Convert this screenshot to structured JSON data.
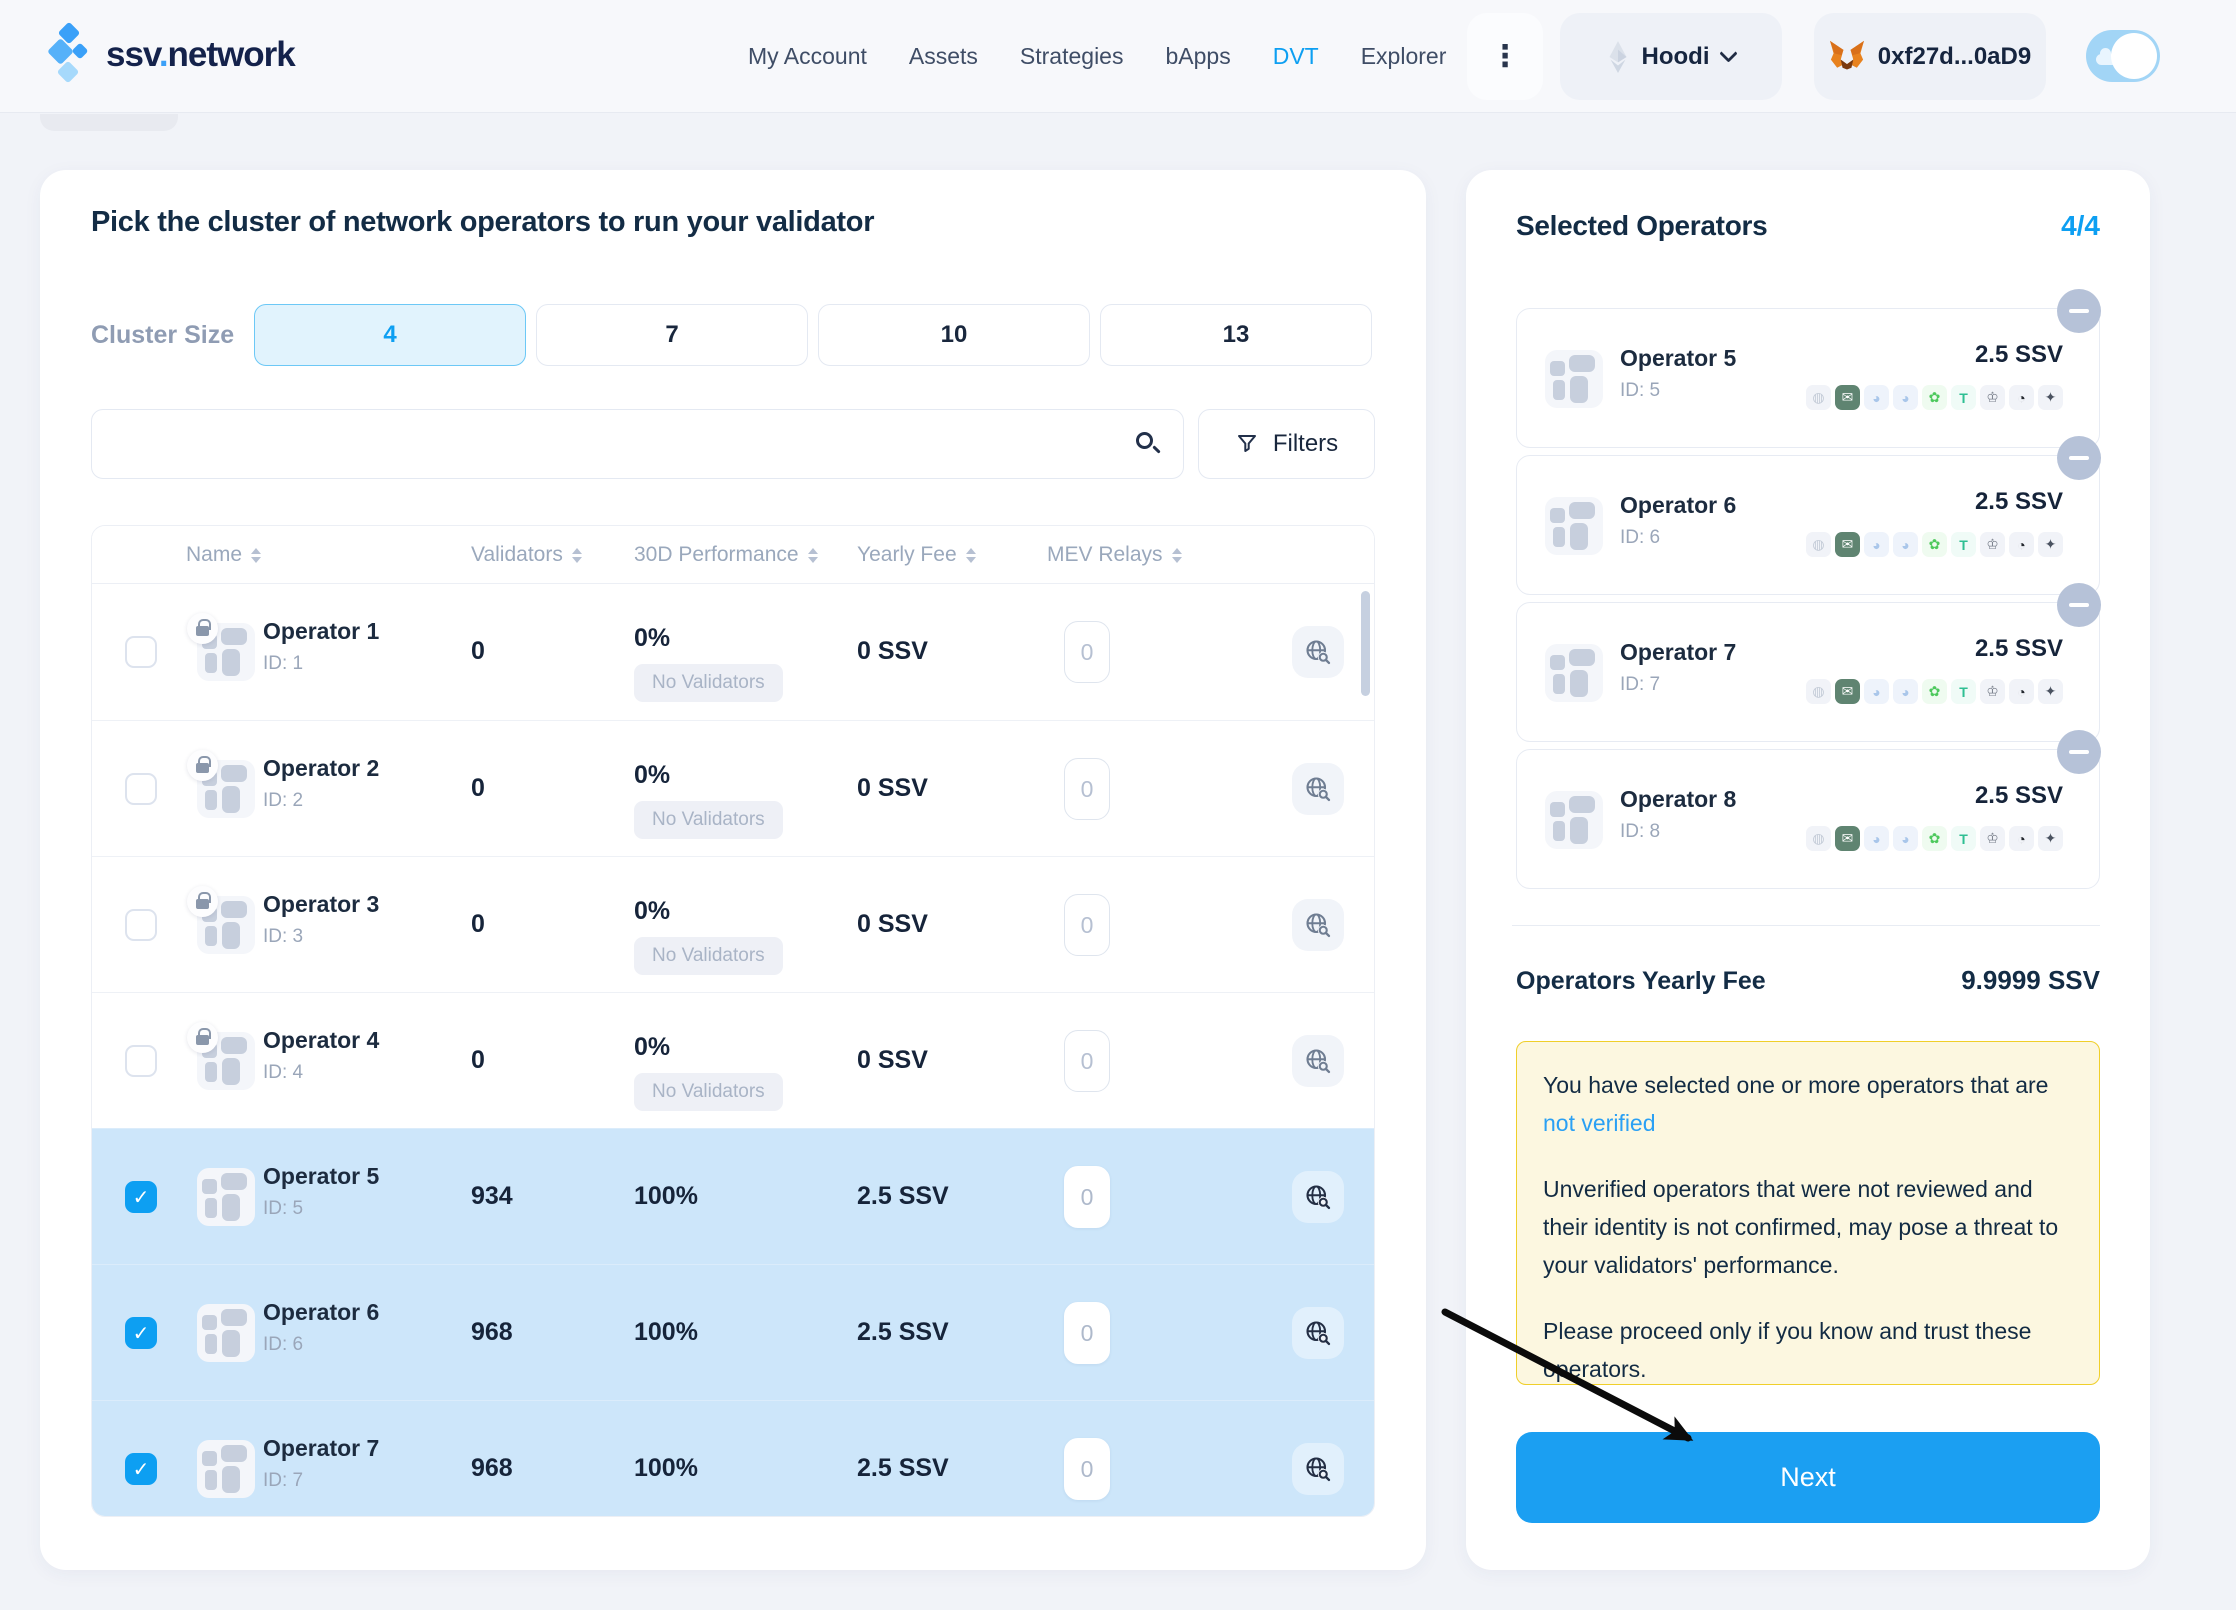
{
  "brand": {
    "prefix": "ssv",
    "dot": ".",
    "suffix": "network"
  },
  "nav": {
    "items": [
      {
        "label": "My Account",
        "active": false
      },
      {
        "label": "Assets",
        "active": false
      },
      {
        "label": "Strategies",
        "active": false
      },
      {
        "label": "bApps",
        "active": false
      },
      {
        "label": "DVT",
        "active": true
      },
      {
        "label": "Explorer",
        "active": false
      }
    ],
    "more_icon": "⋮"
  },
  "network": {
    "name": "Hoodi"
  },
  "wallet": {
    "address": "0xf27d...0aD9"
  },
  "main": {
    "title": "Pick the cluster of network operators to run your validator",
    "cluster": {
      "label": "Cluster Size",
      "options": [
        "4",
        "7",
        "10",
        "13"
      ],
      "selected": "4"
    },
    "search": {
      "placeholder": ""
    },
    "filters_label": "Filters",
    "table": {
      "columns": [
        "Name",
        "Validators",
        "30D Performance",
        "Yearly Fee",
        "MEV Relays"
      ],
      "rows": [
        {
          "name": "Operator 1",
          "id": "ID: 1",
          "validators": "0",
          "performance": "0%",
          "performance_badge": "No Validators",
          "fee": "0 SSV",
          "mev": "0",
          "selected": false,
          "locked": true
        },
        {
          "name": "Operator 2",
          "id": "ID: 2",
          "validators": "0",
          "performance": "0%",
          "performance_badge": "No Validators",
          "fee": "0 SSV",
          "mev": "0",
          "selected": false,
          "locked": true
        },
        {
          "name": "Operator 3",
          "id": "ID: 3",
          "validators": "0",
          "performance": "0%",
          "performance_badge": "No Validators",
          "fee": "0 SSV",
          "mev": "0",
          "selected": false,
          "locked": true
        },
        {
          "name": "Operator 4",
          "id": "ID: 4",
          "validators": "0",
          "performance": "0%",
          "performance_badge": "No Validators",
          "fee": "0 SSV",
          "mev": "0",
          "selected": false,
          "locked": true
        },
        {
          "name": "Operator 5",
          "id": "ID: 5",
          "validators": "934",
          "performance": "100%",
          "performance_badge": "",
          "fee": "2.5 SSV",
          "mev": "0",
          "selected": true,
          "locked": false
        },
        {
          "name": "Operator 6",
          "id": "ID: 6",
          "validators": "968",
          "performance": "100%",
          "performance_badge": "",
          "fee": "2.5 SSV",
          "mev": "0",
          "selected": true,
          "locked": false
        },
        {
          "name": "Operator 7",
          "id": "ID: 7",
          "validators": "968",
          "performance": "100%",
          "performance_badge": "",
          "fee": "2.5 SSV",
          "mev": "0",
          "selected": true,
          "locked": false
        }
      ]
    }
  },
  "sidebar": {
    "title": "Selected Operators",
    "count": "4/4",
    "selected": [
      {
        "name": "Operator 5",
        "id": "ID: 5",
        "fee": "2.5 SSV"
      },
      {
        "name": "Operator 6",
        "id": "ID: 6",
        "fee": "2.5 SSV"
      },
      {
        "name": "Operator 7",
        "id": "ID: 7",
        "fee": "2.5 SSV"
      },
      {
        "name": "Operator 8",
        "id": "ID: 8",
        "fee": "2.5 SSV"
      }
    ],
    "relay_icons": [
      {
        "name": "relay-icon-gray-circle",
        "glyph": "◍",
        "fg": "#c2cad6",
        "bg": "#f1f3f8"
      },
      {
        "name": "relay-icon-green-envelope",
        "glyph": "✉",
        "fg": "#ffffff",
        "bg": "#5f8471"
      },
      {
        "name": "relay-icon-blue-swirl-1",
        "glyph": "◕",
        "fg": "#a9c6ea",
        "bg": "#eef3fb"
      },
      {
        "name": "relay-icon-blue-swirl-2",
        "glyph": "◕",
        "fg": "#a9c6ea",
        "bg": "#eef3fb"
      },
      {
        "name": "relay-icon-green-leaf",
        "glyph": "✿",
        "fg": "#4ec95d",
        "bg": "#effbf0"
      },
      {
        "name": "relay-icon-titan-t",
        "glyph": "T",
        "fg": "#2fbf93",
        "bg": "#f0fbf7"
      },
      {
        "name": "relay-icon-crown",
        "glyph": "♔",
        "fg": "#7d838f",
        "bg": "#f1f3f8"
      },
      {
        "name": "relay-icon-dark-swirl",
        "glyph": "◔",
        "fg": "#23272e",
        "bg": "#f1f3f8"
      },
      {
        "name": "relay-icon-eagle",
        "glyph": "✦",
        "fg": "#4a5260",
        "bg": "#f1f3f8"
      }
    ],
    "fee_label": "Operators Yearly Fee",
    "fee_value": "9.9999 SSV",
    "warning": {
      "line1": "You have selected one or more operators that are",
      "link": "not verified",
      "para2": "Unverified operators that were not reviewed and their identity is not confirmed, may pose a threat to your validators' performance.",
      "para3": "Please proceed only if you know and trust these operators."
    },
    "next_label": "Next"
  },
  "colors": {
    "accent_blue": "#0d9ff2",
    "selected_row_bg": "#cde6fa",
    "warning_bg": "#fcf7e0",
    "warning_border": "#f0cf2a",
    "next_button": "#1b9ff2",
    "page_bg": "#f1f3f8"
  }
}
